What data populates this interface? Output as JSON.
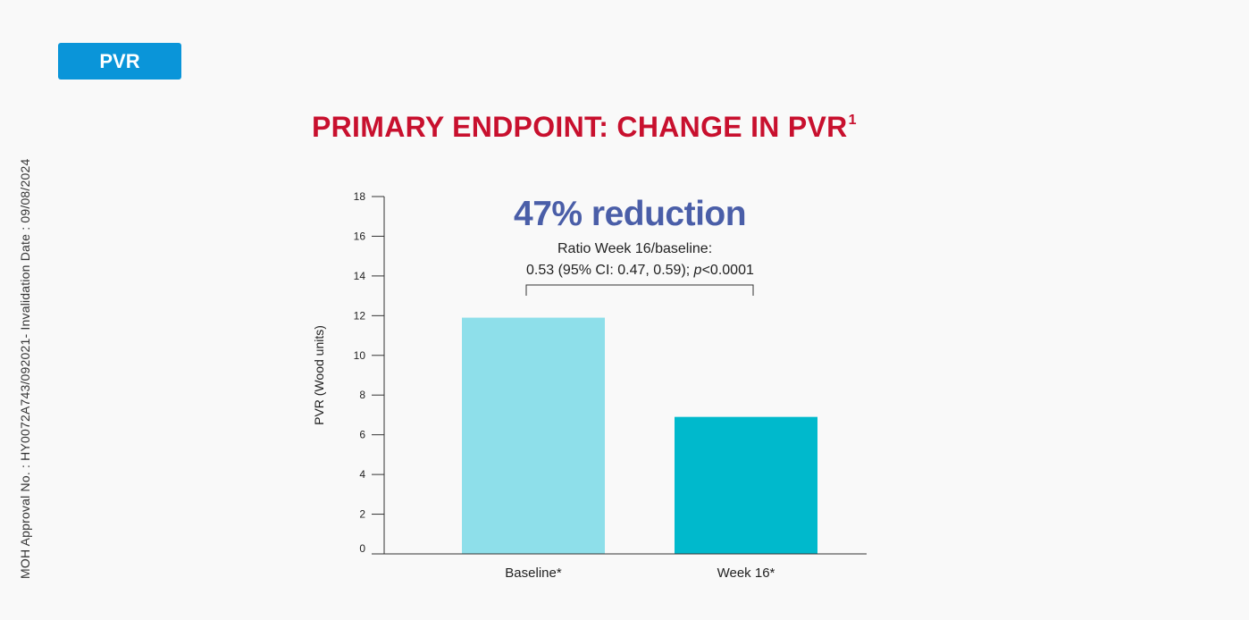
{
  "side_note": "MOH Approval No. : HY0072A743/092021- Invalidation Date : 09/08/2024",
  "tab": {
    "label": "PVR"
  },
  "header": {
    "title": "PRIMARY ENDPOINT: CHANGE IN PVR",
    "title_superscript": "1"
  },
  "annotation": {
    "headline": "47% reduction",
    "ratio_line1": "Ratio Week 16/baseline:",
    "ratio_line2_prefix": "0.53 (95% CI: 0.47, 0.59); ",
    "ratio_line2_p": "p",
    "ratio_line2_suffix": "<0.0001"
  },
  "colors": {
    "title": "#c8102e",
    "tab_bg": "#0a95d9",
    "headline": "#4a5ea8",
    "baseline_bar": "#8edfea",
    "week16_bar": "#00b9cc"
  },
  "chart_data": {
    "type": "bar",
    "categories": [
      "Baseline*",
      "Week 16*"
    ],
    "values": [
      11.9,
      6.9
    ],
    "ylabel": "PVR (Wood units)",
    "xlabel": "",
    "ylim": [
      0,
      18
    ],
    "yticks": [
      0,
      2,
      4,
      6,
      8,
      10,
      12,
      14,
      16,
      18
    ],
    "grid": false,
    "bar_colors": [
      "#8edfea",
      "#00b9cc"
    ]
  }
}
